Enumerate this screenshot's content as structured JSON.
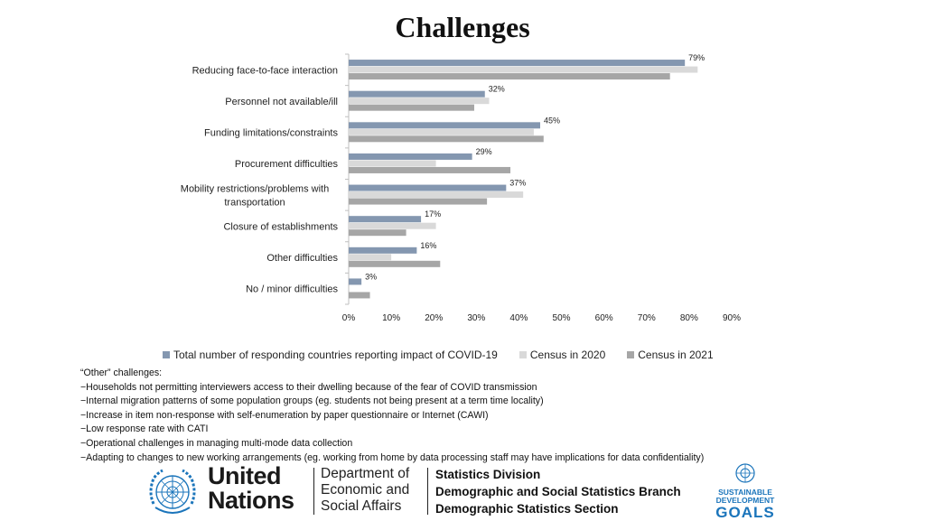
{
  "title": "Challenges",
  "chart_data": {
    "type": "bar",
    "orientation": "horizontal",
    "title": "Challenges",
    "categories": [
      [
        "Reducing face-to-face interaction"
      ],
      [
        "Personnel not available/ill"
      ],
      [
        "Funding limitations/constraints"
      ],
      [
        "Procurement difficulties"
      ],
      [
        "Mobility restrictions/problems with",
        "transportation"
      ],
      [
        "Closure of establishments"
      ],
      [
        "Other difficulties"
      ],
      [
        "No / minor difficulties"
      ]
    ],
    "series": [
      {
        "name": "Total number of responding countries reporting impact of COVID-19",
        "color": "#8497b0",
        "values": [
          79,
          32,
          45,
          29,
          37,
          17,
          16,
          3
        ],
        "labels": [
          "79%",
          "32%",
          "45%",
          "29%",
          "37%",
          "17%",
          "16%",
          "3%"
        ]
      },
      {
        "name": "Census in 2020",
        "color": "#d9d9d9",
        "values": [
          82,
          33,
          43.5,
          20.5,
          41,
          20.5,
          10,
          0
        ]
      },
      {
        "name": "Census in 2021",
        "color": "#a6a6a6",
        "values": [
          75.5,
          29.5,
          45.8,
          38,
          32.5,
          13.5,
          21.5,
          5
        ]
      }
    ],
    "xlim": [
      0,
      90
    ],
    "xticks": [
      "0%",
      "10%",
      "20%",
      "30%",
      "40%",
      "50%",
      "60%",
      "70%",
      "80%",
      "90%"
    ],
    "legend_position": "bottom",
    "grid": false
  },
  "notes": {
    "heading": "“Other” challenges:",
    "lines": [
      "−Households not permitting interviewers access to their dwelling because of the fear of COVID transmission",
      "−Internal migration patterns of some population groups (eg. students not being present at a term time locality)",
      "−Increase in item non-response with self-enumeration by paper questionnaire or Internet (CAWI)",
      "−Low response rate with CATI",
      "−Operational challenges in managing multi-mode data collection",
      "−Adapting to changes to new working arrangements (eg. working from home by data processing staff  may have implications for data confidentiality)"
    ]
  },
  "footer": {
    "un_name": [
      "United",
      "Nations"
    ],
    "desa": [
      "Department of",
      "Economic and",
      "Social Affairs"
    ],
    "division": [
      "Statistics Division",
      "Demographic and Social Statistics Branch",
      "Demographic Statistics Section"
    ],
    "sdg": [
      "SUSTAINABLE",
      "DEVELOPMENT",
      "GOALS"
    ],
    "un_blue": "#1b75bb",
    "sdg_blue": "#1b75bb"
  }
}
